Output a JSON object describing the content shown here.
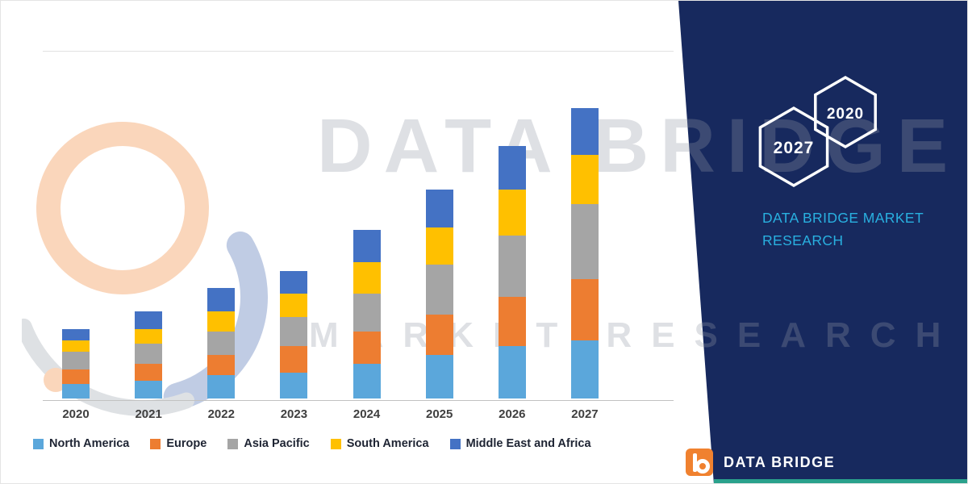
{
  "watermarks": {
    "line1": "DATA BRIDGE",
    "line2": "MARKET RESEARCH"
  },
  "panel": {
    "hexagons": [
      {
        "year": "2027"
      },
      {
        "year": "2020"
      }
    ],
    "research_title": "DATA BRIDGE MARKET RESEARCH",
    "logo_text": "DATA BRIDGE",
    "colors": {
      "background_navy": "#17295E",
      "accent_cyan": "#29B0E0",
      "accent_teal": "#2AA18C",
      "logo_orange": "#F0812F"
    }
  },
  "chart_data": {
    "type": "bar",
    "stacked": true,
    "title": "",
    "categories": [
      "2020",
      "2021",
      "2022",
      "2023",
      "2024",
      "2025",
      "2026",
      "2027"
    ],
    "series": [
      {
        "name": "North America",
        "color": "#5BA7DB",
        "values": [
          5,
          6,
          8,
          9,
          12,
          15,
          18,
          20
        ]
      },
      {
        "name": "Europe",
        "color": "#ED7D31",
        "values": [
          5,
          6,
          7,
          9,
          11,
          14,
          17,
          21
        ]
      },
      {
        "name": "Asia Pacific",
        "color": "#A5A5A5",
        "values": [
          6,
          7,
          8,
          10,
          13,
          17,
          21,
          26
        ]
      },
      {
        "name": "South America",
        "color": "#FFC000",
        "values": [
          4,
          5,
          7,
          8,
          11,
          13,
          16,
          17
        ]
      },
      {
        "name": "Middle East and Africa",
        "color": "#4472C4",
        "values": [
          4,
          6,
          8,
          8,
          11,
          13,
          15,
          16
        ]
      }
    ],
    "totals": [
      24,
      30,
      38,
      44,
      58,
      72,
      87,
      100
    ],
    "legend_position": "bottom",
    "ylim": [
      0,
      105
    ],
    "gridlines": false,
    "x_axis_visible": true,
    "y_axis_visible": false
  }
}
